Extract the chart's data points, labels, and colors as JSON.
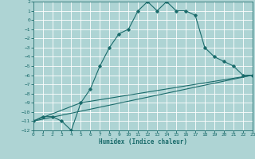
{
  "xlabel": "Humidex (Indice chaleur)",
  "bg_color": "#aed4d4",
  "grid_color": "#ffffff",
  "line_color": "#1a6b6b",
  "xlim": [
    0,
    23
  ],
  "ylim": [
    -12,
    2
  ],
  "line1_x": [
    0,
    1,
    2,
    3,
    4,
    5,
    6,
    7,
    8,
    9,
    10,
    11,
    12,
    13,
    14,
    15,
    16,
    17,
    18,
    19,
    20,
    21,
    22,
    23
  ],
  "line1_y": [
    -11,
    -10.5,
    -10.5,
    -11,
    -12,
    -9,
    -7.5,
    -5,
    -3,
    -1.5,
    -1,
    1,
    2,
    1,
    2,
    1,
    1,
    0.5,
    -3,
    -4,
    -4.5,
    -5,
    -6,
    -6
  ],
  "line2_x": [
    0,
    23
  ],
  "line2_y": [
    -11,
    -6
  ],
  "line3_x": [
    0,
    5,
    23
  ],
  "line3_y": [
    -11,
    -9,
    -6
  ],
  "tick_fontsize": 4.5,
  "xlabel_fontsize": 5.5
}
